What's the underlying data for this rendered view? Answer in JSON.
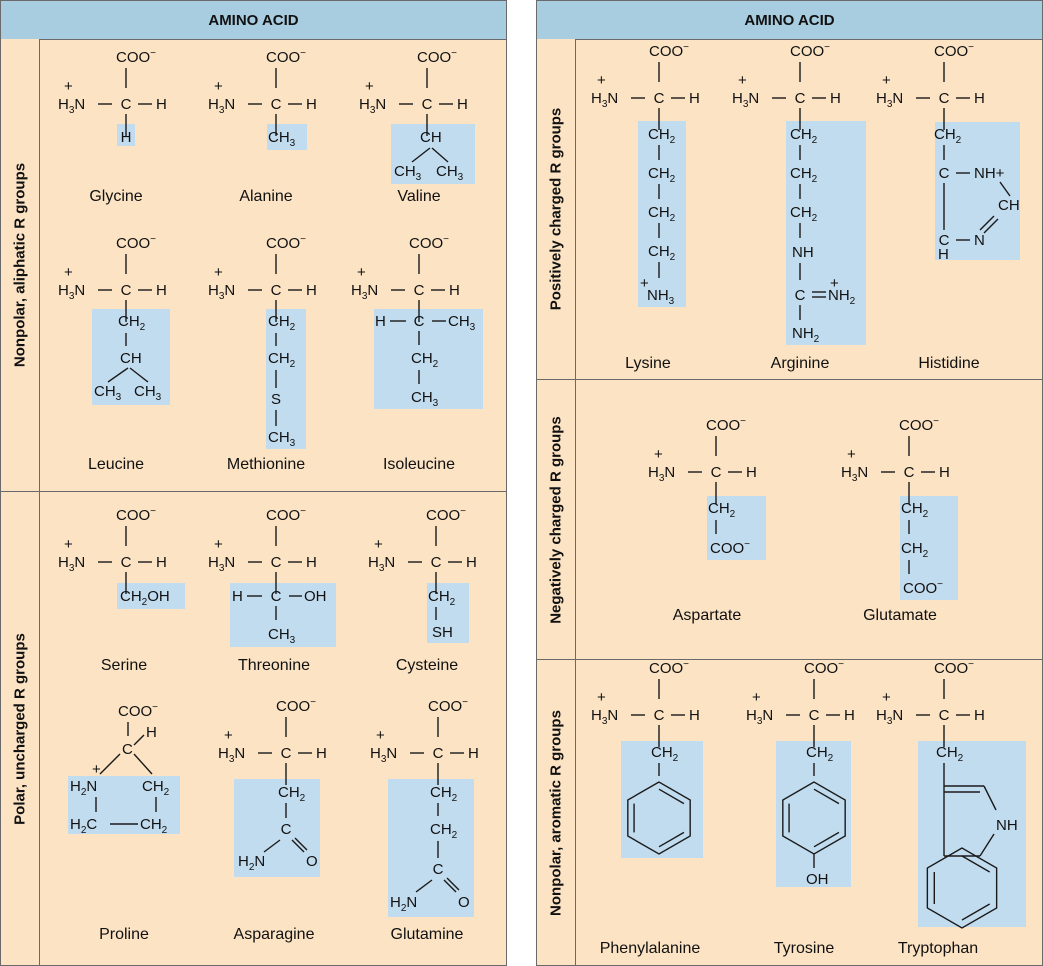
{
  "left_panel": {
    "header": "AMINO ACID",
    "groups": [
      {
        "label": "Nonpolar, aliphatic R groups"
      },
      {
        "label": "Polar, uncharged R groups"
      }
    ]
  },
  "right_panel": {
    "header": "AMINO ACID",
    "groups": [
      {
        "label": "Positively charged R groups"
      },
      {
        "label": "Negatively charged R groups"
      },
      {
        "label": "Nonpolar, aromatic R groups"
      }
    ]
  },
  "amino_acids": {
    "glycine": "Glycine",
    "alanine": "Alanine",
    "valine": "Valine",
    "leucine": "Leucine",
    "methionine": "Methionine",
    "isoleucine": "Isoleucine",
    "serine": "Serine",
    "threonine": "Threonine",
    "cysteine": "Cysteine",
    "proline": "Proline",
    "asparagine": "Asparagine",
    "glutamine": "Glutamine",
    "lysine": "Lysine",
    "arginine": "Arginine",
    "histidine": "Histidine",
    "aspartate": "Aspartate",
    "glutamate": "Glutamate",
    "phenylalanine": "Phenylalanine",
    "tyrosine": "Tyrosine",
    "tryptophan": "Tryptophan"
  },
  "atoms": {
    "coo": "COO",
    "minus": "−",
    "plus": "+",
    "h3n_h": "H",
    "h3n_3": "3",
    "n": "N",
    "c": "C",
    "h": "H",
    "ch": "CH",
    "ch2_ch": "CH",
    "sub2": "2",
    "sub3": "3",
    "s": "S",
    "oh": "OH",
    "sh": "SH",
    "nh": "NH",
    "nh2": "NH",
    "nh_plus": "NH+",
    "o": "O",
    "h2c": "H",
    "ch2oh": "OH"
  },
  "colors": {
    "background": "#fbe3c4",
    "header": "#a9cde0",
    "r_group": "#c2dcef",
    "border": "#6a6a6a"
  }
}
